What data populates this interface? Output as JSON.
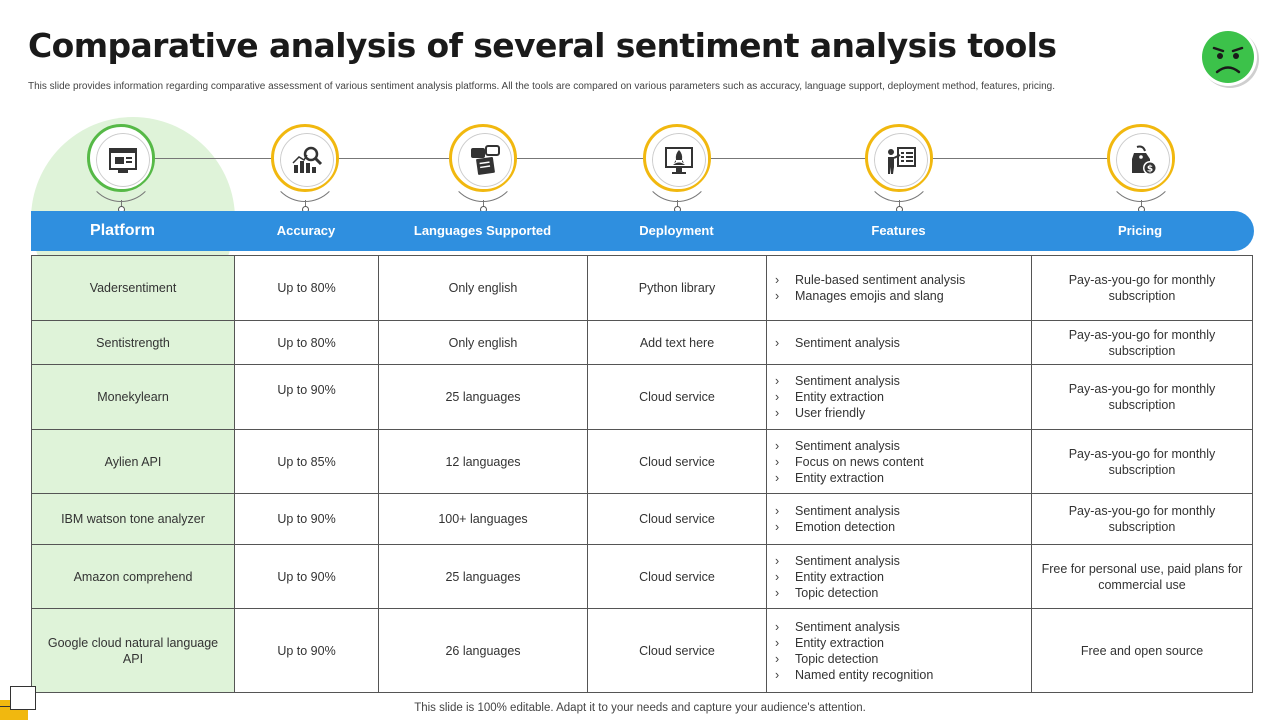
{
  "title": "Comparative analysis of several sentiment analysis tools",
  "subtitle": "This slide provides information regarding comparative assessment of various sentiment analysis platforms. All the tools are compared on various parameters such as accuracy, language support, deployment method,  features, pricing.",
  "columns": {
    "platform": "Platform",
    "accuracy": "Accuracy",
    "languages": "Languages Supported",
    "deployment": "Deployment",
    "features": "Features",
    "pricing": "Pricing"
  },
  "icons": {
    "platform": "computer-window-icon",
    "accuracy": "chart-magnifier-icon",
    "languages": "speech-bubbles-icon",
    "deployment": "rocket-monitor-icon",
    "features": "presenter-board-icon",
    "pricing": "price-tag-icon",
    "face": "sick-face-icon"
  },
  "colors": {
    "accent_blue": "#2f8fdf",
    "accent_yellow": "#f1b80f",
    "accent_green": "#56b947",
    "platform_bg": "#dff3d9"
  },
  "rows": [
    {
      "platform": "Vadersentiment",
      "accuracy": "Up to 80%",
      "languages": "Only english",
      "deployment": "Python library",
      "features": [
        "Rule-based sentiment analysis",
        "Manages emojis and slang"
      ],
      "pricing": "Pay-as-you-go for monthly subscription"
    },
    {
      "platform": "Sentistrength",
      "accuracy": "Up to 80%",
      "languages": "Only english",
      "deployment": "Add text here",
      "features": [
        "Sentiment analysis"
      ],
      "pricing": "Pay-as-you-go for monthly subscription"
    },
    {
      "platform": "Monekylearn",
      "accuracy": "Up to 90%",
      "languages": "25 languages",
      "deployment": "Cloud service",
      "features": [
        "Sentiment analysis",
        "Entity extraction",
        "User friendly"
      ],
      "pricing": "Pay-as-you-go for monthly subscription"
    },
    {
      "platform": "Aylien API",
      "accuracy": "Up to 85%",
      "languages": "12 languages",
      "deployment": "Cloud service",
      "features": [
        "Sentiment analysis",
        "Focus on news content",
        "Entity extraction"
      ],
      "pricing": "Pay-as-you-go for monthly subscription"
    },
    {
      "platform": "IBM watson tone analyzer",
      "accuracy": "Up to 90%",
      "languages": "100+ languages",
      "deployment": "Cloud service",
      "features": [
        "Sentiment analysis",
        "Emotion detection"
      ],
      "pricing": "Pay-as-you-go for monthly subscription"
    },
    {
      "platform": "Amazon comprehend",
      "accuracy": "Up to 90%",
      "languages": "25 languages",
      "deployment": "Cloud service",
      "features": [
        "Sentiment analysis",
        "Entity extraction",
        "Topic detection"
      ],
      "pricing": "Free for personal use, paid plans for commercial use"
    },
    {
      "platform": "Google cloud natural language API",
      "accuracy": "Up to 90%",
      "languages": "26 languages",
      "deployment": "Cloud service",
      "features": [
        "Sentiment analysis",
        "Entity extraction",
        "Topic detection",
        "Named entity recognition"
      ],
      "pricing": "Free and open source"
    }
  ],
  "footer": "This slide is 100% editable. Adapt it to your needs and capture your audience's attention."
}
